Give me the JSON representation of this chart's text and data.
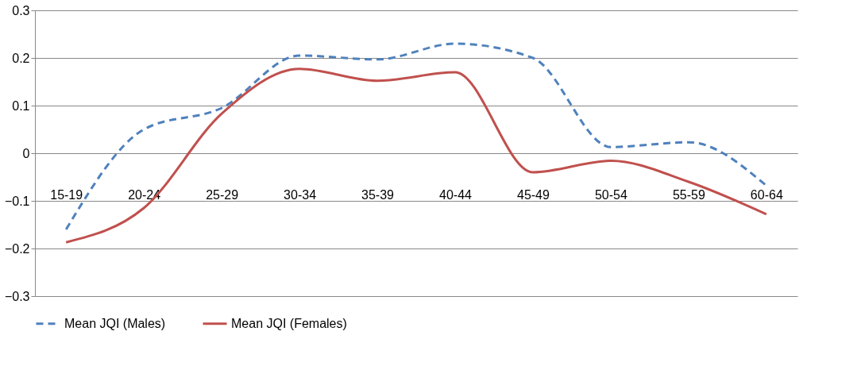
{
  "chart_data": {
    "type": "line",
    "categories": [
      "15-19",
      "20-24",
      "25-29",
      "30-34",
      "35-39",
      "40-44",
      "45-49",
      "50-54",
      "55-59",
      "60-64"
    ],
    "series": [
      {
        "name": "Mean JQI (Males)",
        "color": "#4f81bd",
        "line_style": "dashed",
        "values": [
          -0.16,
          0.05,
          0.095,
          0.205,
          0.197,
          0.23,
          0.2,
          0.013,
          0.023,
          -0.068
        ]
      },
      {
        "name": "Mean JQI (Females)",
        "color": "#c0504d",
        "line_style": "solid",
        "values": [
          -0.187,
          -0.115,
          0.083,
          0.177,
          0.152,
          0.17,
          -0.04,
          -0.016,
          -0.06,
          -0.128
        ]
      }
    ],
    "ylim": [
      -0.3,
      0.3
    ],
    "yticks": [
      -0.3,
      -0.2,
      -0.1,
      0,
      0.1,
      0.2,
      0.3
    ],
    "grid": "y",
    "legend": "bottom",
    "marker": "none"
  }
}
